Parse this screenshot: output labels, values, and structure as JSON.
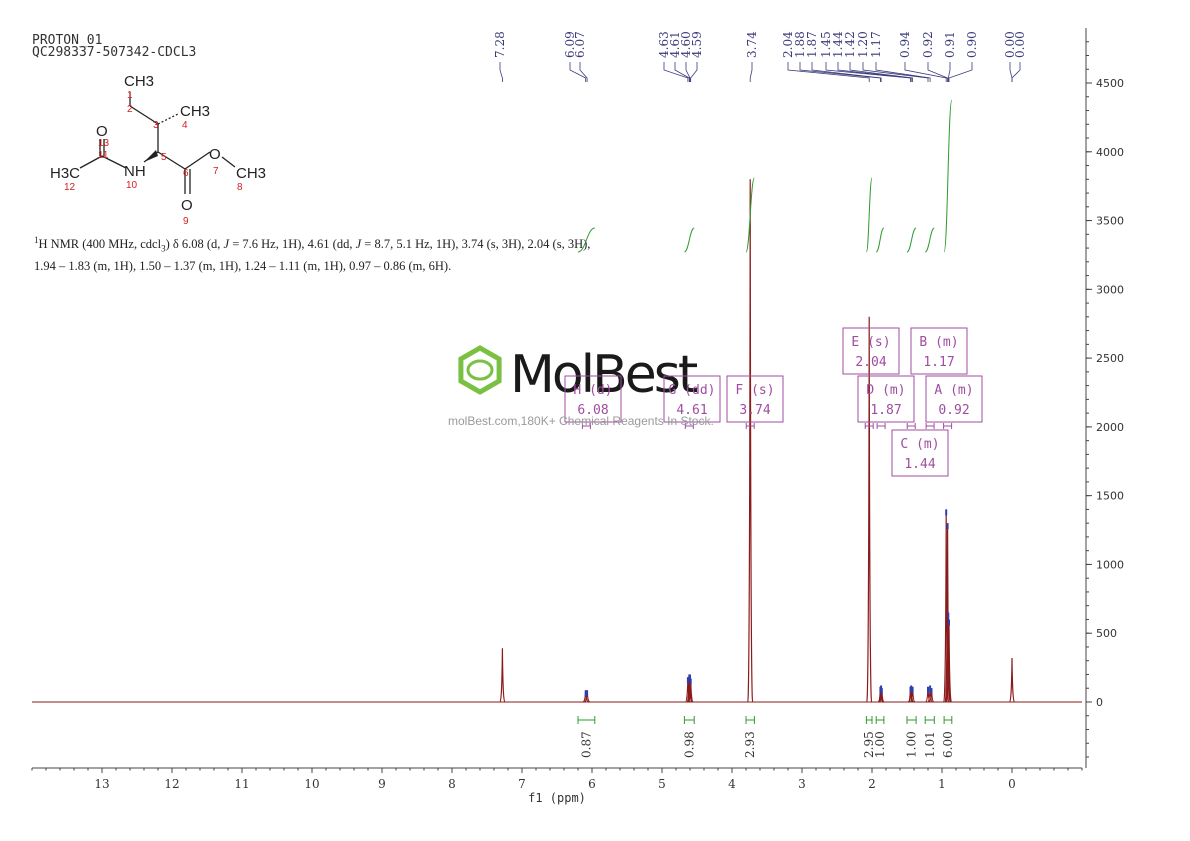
{
  "header": {
    "line1": "PROTON_01",
    "line2": "QC298337-507342-CDCL3"
  },
  "structure": {
    "atoms": [
      "CH3",
      "CH3",
      "O",
      "NH",
      "O",
      "CH3",
      "O"
    ],
    "h3c_label": "H3C",
    "numbers": [
      "1",
      "2",
      "3",
      "4",
      "5",
      "6",
      "7",
      "8",
      "9",
      "10",
      "11",
      "12",
      "13"
    ]
  },
  "description": {
    "segments": [
      {
        "t": "1",
        "sup": true
      },
      {
        "t": "H NMR (400 MHz, cdcl"
      },
      {
        "t": "3",
        "sub": true
      },
      {
        "t": ") δ 6.08 (d, "
      },
      {
        "t": "J",
        "it": true
      },
      {
        "t": " = 7.6 Hz, 1H), 4.61 (dd, "
      },
      {
        "t": "J",
        "it": true
      },
      {
        "t": " = 8.7, 5.1 Hz, 1H), 3.74 (s, 3H), 2.04 (s, 3H), 1.94 – 1.83 (m, 1H), 1.50 – 1.37 (m, 1H), 1.24 – 1.11 (m, 1H), 0.97 – 0.86 (m, 6H)."
      }
    ]
  },
  "watermark": {
    "brand": "MolBest",
    "tagline": "molBest.com,180K+ Chemical Reagents In Stock."
  },
  "colors": {
    "spectrum": "#8b1a1a",
    "integral": "#2e9a2e",
    "multiplet_box": "#a04da0",
    "peak_marker": "#2b3fb5",
    "axis": "#444444",
    "peak_label": "#3a3a7a",
    "watermark_green": "#7ac143",
    "watermark_text": "#1a1a1a"
  },
  "chart_data": {
    "type": "line",
    "xlabel": "f1 (ppm)",
    "xlim": [
      14.0,
      -1.0
    ],
    "x_reversed": true,
    "ylim": [
      -480,
      4900
    ],
    "x_ticks": [
      13,
      12,
      11,
      10,
      9,
      8,
      7,
      6,
      5,
      4,
      3,
      2,
      1,
      0
    ],
    "y_ticks": [
      0,
      500,
      1000,
      1500,
      2000,
      2500,
      3000,
      3500,
      4000,
      4500
    ],
    "peaks": [
      {
        "ppm": 7.28,
        "height": 390,
        "width": 0.008
      },
      {
        "ppm": 6.09,
        "height": 85,
        "width": 0.02
      },
      {
        "ppm": 6.07,
        "height": 85,
        "width": 0.02
      },
      {
        "ppm": 4.63,
        "height": 180,
        "width": 0.008
      },
      {
        "ppm": 4.61,
        "height": 200,
        "width": 0.008
      },
      {
        "ppm": 4.6,
        "height": 200,
        "width": 0.008
      },
      {
        "ppm": 4.59,
        "height": 170,
        "width": 0.008
      },
      {
        "ppm": 3.74,
        "height": 3800,
        "width": 0.006
      },
      {
        "ppm": 2.04,
        "height": 2800,
        "width": 0.006
      },
      {
        "ppm": 1.88,
        "height": 110,
        "width": 0.012
      },
      {
        "ppm": 1.87,
        "height": 120,
        "width": 0.012
      },
      {
        "ppm": 1.86,
        "height": 100,
        "width": 0.012
      },
      {
        "ppm": 1.45,
        "height": 110,
        "width": 0.012
      },
      {
        "ppm": 1.44,
        "height": 120,
        "width": 0.012
      },
      {
        "ppm": 1.42,
        "height": 110,
        "width": 0.012
      },
      {
        "ppm": 1.2,
        "height": 110,
        "width": 0.012
      },
      {
        "ppm": 1.17,
        "height": 120,
        "width": 0.012
      },
      {
        "ppm": 1.15,
        "height": 100,
        "width": 0.012
      },
      {
        "ppm": 0.94,
        "height": 1400,
        "width": 0.005
      },
      {
        "ppm": 0.92,
        "height": 1300,
        "width": 0.005
      },
      {
        "ppm": 0.91,
        "height": 650,
        "width": 0.005
      },
      {
        "ppm": 0.9,
        "height": 600,
        "width": 0.005
      },
      {
        "ppm": 0.0,
        "height": 320,
        "width": 0.006
      }
    ],
    "peak_labels": [
      "7.28",
      "6.09",
      "6.07",
      "4.63",
      "4.61",
      "4.60",
      "4.59",
      "3.74",
      "2.04",
      "1.88",
      "1.87",
      "1.45",
      "1.44",
      "1.42",
      "1.20",
      "1.17",
      "0.94",
      "0.92",
      "0.91",
      "0.90",
      "0.00",
      "0.00"
    ],
    "peak_label_ppm": [
      7.28,
      6.09,
      6.07,
      4.63,
      4.61,
      4.6,
      4.59,
      3.74,
      2.04,
      1.88,
      1.87,
      1.45,
      1.44,
      1.42,
      1.2,
      1.17,
      0.94,
      0.92,
      0.91,
      0.9,
      0.0,
      0.0
    ],
    "integrals": [
      {
        "value": "0.87",
        "from": 6.2,
        "to": 5.96
      },
      {
        "value": "0.98",
        "from": 4.68,
        "to": 4.54
      },
      {
        "value": "2.93",
        "from": 3.8,
        "to": 3.68
      },
      {
        "value": "2.95",
        "from": 2.08,
        "to": 2.0
      },
      {
        "value": "1.00",
        "from": 1.94,
        "to": 1.83
      },
      {
        "value": "1.00",
        "from": 1.5,
        "to": 1.37
      },
      {
        "value": "1.01",
        "from": 1.24,
        "to": 1.11
      },
      {
        "value": "6.00",
        "from": 0.97,
        "to": 0.86
      }
    ],
    "integral_curve_ranges": [
      [
        6.2,
        5.96
      ],
      [
        4.68,
        4.54
      ],
      [
        3.8,
        3.68
      ],
      [
        2.08,
        2.0
      ],
      [
        1.94,
        1.83
      ],
      [
        1.5,
        1.37
      ],
      [
        1.24,
        1.11
      ],
      [
        0.97,
        0.86
      ]
    ],
    "multiplets": [
      {
        "label": "E (s)",
        "shift": "2.04",
        "ppm": 2.04
      },
      {
        "label": "B (m)",
        "shift": "1.17",
        "ppm": 1.17
      },
      {
        "label": "H (d)",
        "shift": "6.08",
        "ppm": 6.08
      },
      {
        "label": "G (dd)",
        "shift": "4.61",
        "ppm": 4.61
      },
      {
        "label": "F (s)",
        "shift": "3.74",
        "ppm": 3.74
      },
      {
        "label": "D (m)",
        "shift": "1.87",
        "ppm": 1.87
      },
      {
        "label": "A (m)",
        "shift": "0.92",
        "ppm": 0.92
      },
      {
        "label": "C (m)",
        "shift": "1.44",
        "ppm": 1.44
      }
    ]
  }
}
